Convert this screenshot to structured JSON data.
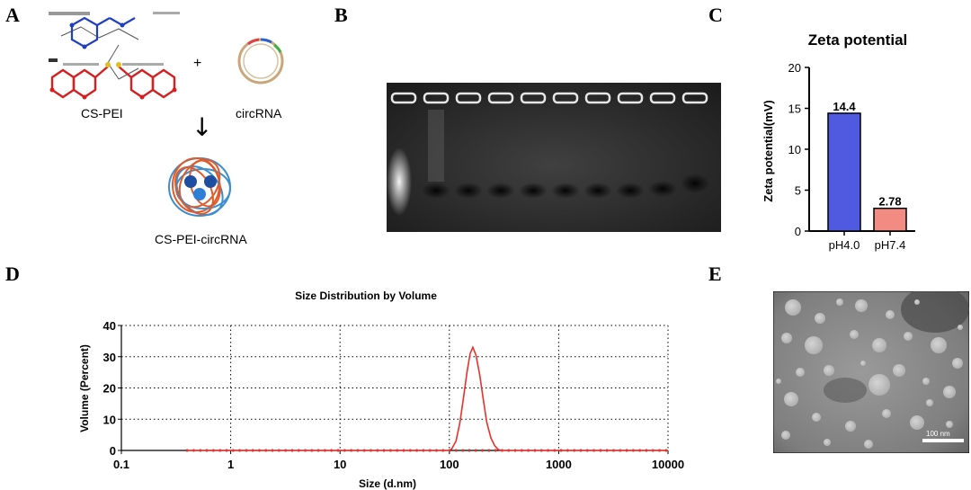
{
  "panels": {
    "a": "A",
    "b": "B",
    "c": "C",
    "d": "D",
    "e": "E"
  },
  "panel_a": {
    "reactant1": "CS-PEI",
    "plus": "+",
    "reactant2": "circRNA",
    "arrow": "↓",
    "product": "CS-PEI-circRNA"
  },
  "panel_e": {
    "scalebar": "100 nm"
  },
  "colors": {
    "bar1": "#4f5ae0",
    "bar2": "#f28b82",
    "curve": "#e8302c",
    "axis_pts": "#e8302c"
  },
  "chart_data": [
    {
      "type": "bar",
      "title": "Zeta potential",
      "xlabel": "",
      "ylabel": "Zeta potential(mV)",
      "categories": [
        "pH4.0",
        "pH7.4"
      ],
      "values": [
        14.4,
        2.78
      ],
      "value_labels": [
        "14.4",
        "2.78"
      ],
      "ylim": [
        0,
        20
      ],
      "yticks": [
        "0",
        "5",
        "10",
        "15",
        "20"
      ],
      "grid": false
    },
    {
      "type": "line",
      "title": "Size Distribution by Volume",
      "xlabel": "Size (d.nm)",
      "ylabel": "Volume (Percent)",
      "xscale": "log",
      "xlim": [
        0.1,
        10000
      ],
      "ylim": [
        0,
        40
      ],
      "xticks": [
        "0.1",
        "1",
        "10",
        "100",
        "1000",
        "10000"
      ],
      "yticks": [
        "0",
        "10",
        "20",
        "30",
        "40"
      ],
      "grid": true,
      "series": [
        {
          "x": [
            0.4,
            1,
            10,
            100,
            105,
            115,
            125,
            135,
            145,
            155,
            164,
            175,
            190,
            205,
            220,
            240,
            260,
            280,
            300,
            1000,
            10000
          ],
          "y": [
            0,
            0,
            0,
            0,
            0.5,
            3,
            9,
            17,
            25,
            31,
            33,
            30.5,
            24,
            16,
            9,
            4,
            1.5,
            0.3,
            0,
            0,
            0
          ]
        }
      ]
    }
  ]
}
